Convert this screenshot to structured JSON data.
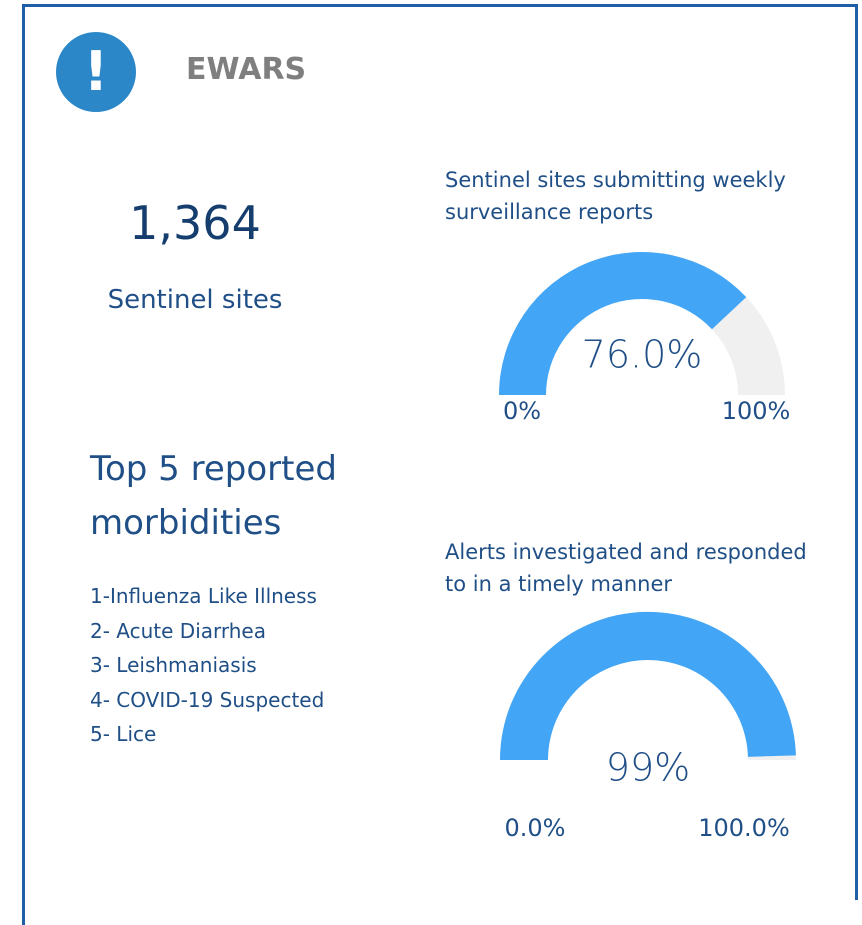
{
  "header": {
    "title": "EWARS",
    "icon": "!"
  },
  "sites": {
    "count": "1,364",
    "label": "Sentinel sites"
  },
  "morbidities": {
    "title": "Top 5 reported morbidities",
    "items": [
      "1-Influenza Like Illness",
      "2- Acute Diarrhea",
      "3- Leishmaniasis",
      "4- COVID-19 Suspected",
      "5- Lice"
    ]
  },
  "chart_data": [
    {
      "type": "gauge",
      "title": "Sentinel sites submitting weekly surveillance reports",
      "values": [
        76
      ],
      "value_labels": [
        "76.0%"
      ],
      "color": "#42a5f5",
      "track_color": "#f0f0f0",
      "ylim": [
        0,
        100
      ],
      "yticks": [
        {
          "value": 0,
          "label": "0%"
        },
        {
          "value": 100,
          "label": "100%"
        }
      ]
    },
    {
      "type": "gauge",
      "title": "Alerts investigated and responded to in a timely manner",
      "values": [
        99
      ],
      "value_labels": [
        "99%"
      ],
      "color": "#42a5f5",
      "track_color": "#f0f0f0",
      "ylim": [
        0,
        100
      ],
      "yticks": [
        {
          "value": 0,
          "label": "0.0%"
        },
        {
          "value": 100,
          "label": "100.0%"
        }
      ]
    }
  ]
}
